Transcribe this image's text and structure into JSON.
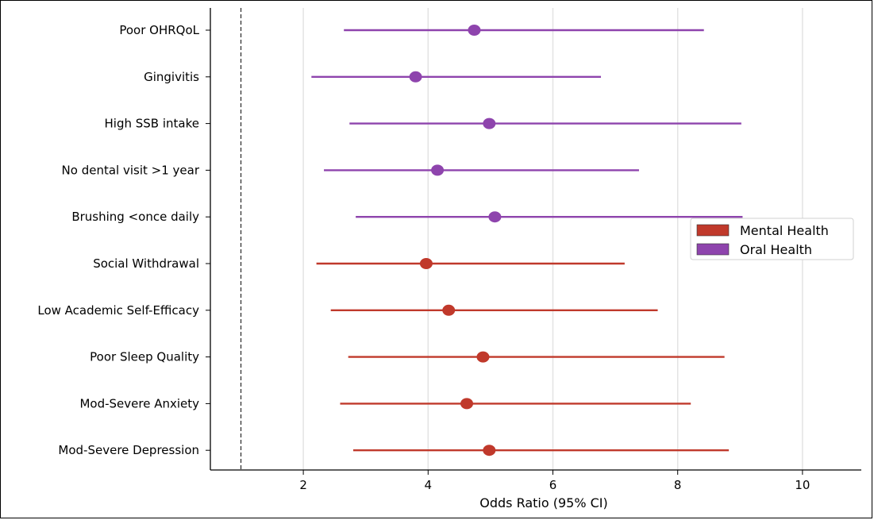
{
  "chart_data": {
    "type": "forest",
    "xlabel": "Odds Ratio (95% CI)",
    "xlim": [
      0.55,
      11.0
    ],
    "xticks": [
      2,
      4,
      6,
      8,
      10
    ],
    "reference_line": 1,
    "grid": "vertical",
    "legend": {
      "placement": "right",
      "entries": [
        {
          "name": "Mental Health",
          "color": "#c0392b"
        },
        {
          "name": "Oral Health",
          "color": "#8e44ad"
        }
      ]
    },
    "rows": [
      {
        "label": "Poor OHRQoL",
        "group": "Oral Health",
        "or": 4.74,
        "lower": 2.65,
        "upper": 8.42
      },
      {
        "label": "Gingivitis",
        "group": "Oral Health",
        "or": 3.8,
        "lower": 2.13,
        "upper": 6.77
      },
      {
        "label": "High SSB intake",
        "group": "Oral Health",
        "or": 4.98,
        "lower": 2.74,
        "upper": 9.02
      },
      {
        "label": "No dental visit >1 year",
        "group": "Oral Health",
        "or": 4.15,
        "lower": 2.33,
        "upper": 7.38
      },
      {
        "label": "Brushing <once daily",
        "group": "Oral Health",
        "or": 5.07,
        "lower": 2.84,
        "upper": 9.04
      },
      {
        "label": "Social Withdrawal",
        "group": "Mental Health",
        "or": 3.97,
        "lower": 2.21,
        "upper": 7.15
      },
      {
        "label": "Low Academic Self-Efficacy",
        "group": "Mental Health",
        "or": 4.33,
        "lower": 2.44,
        "upper": 7.68
      },
      {
        "label": "Poor Sleep Quality",
        "group": "Mental Health",
        "or": 4.88,
        "lower": 2.72,
        "upper": 8.75
      },
      {
        "label": "Mod-Severe Anxiety",
        "group": "Mental Health",
        "or": 4.62,
        "lower": 2.59,
        "upper": 8.21
      },
      {
        "label": "Mod-Severe Depression",
        "group": "Mental Health",
        "or": 4.98,
        "lower": 2.8,
        "upper": 8.82
      }
    ]
  }
}
